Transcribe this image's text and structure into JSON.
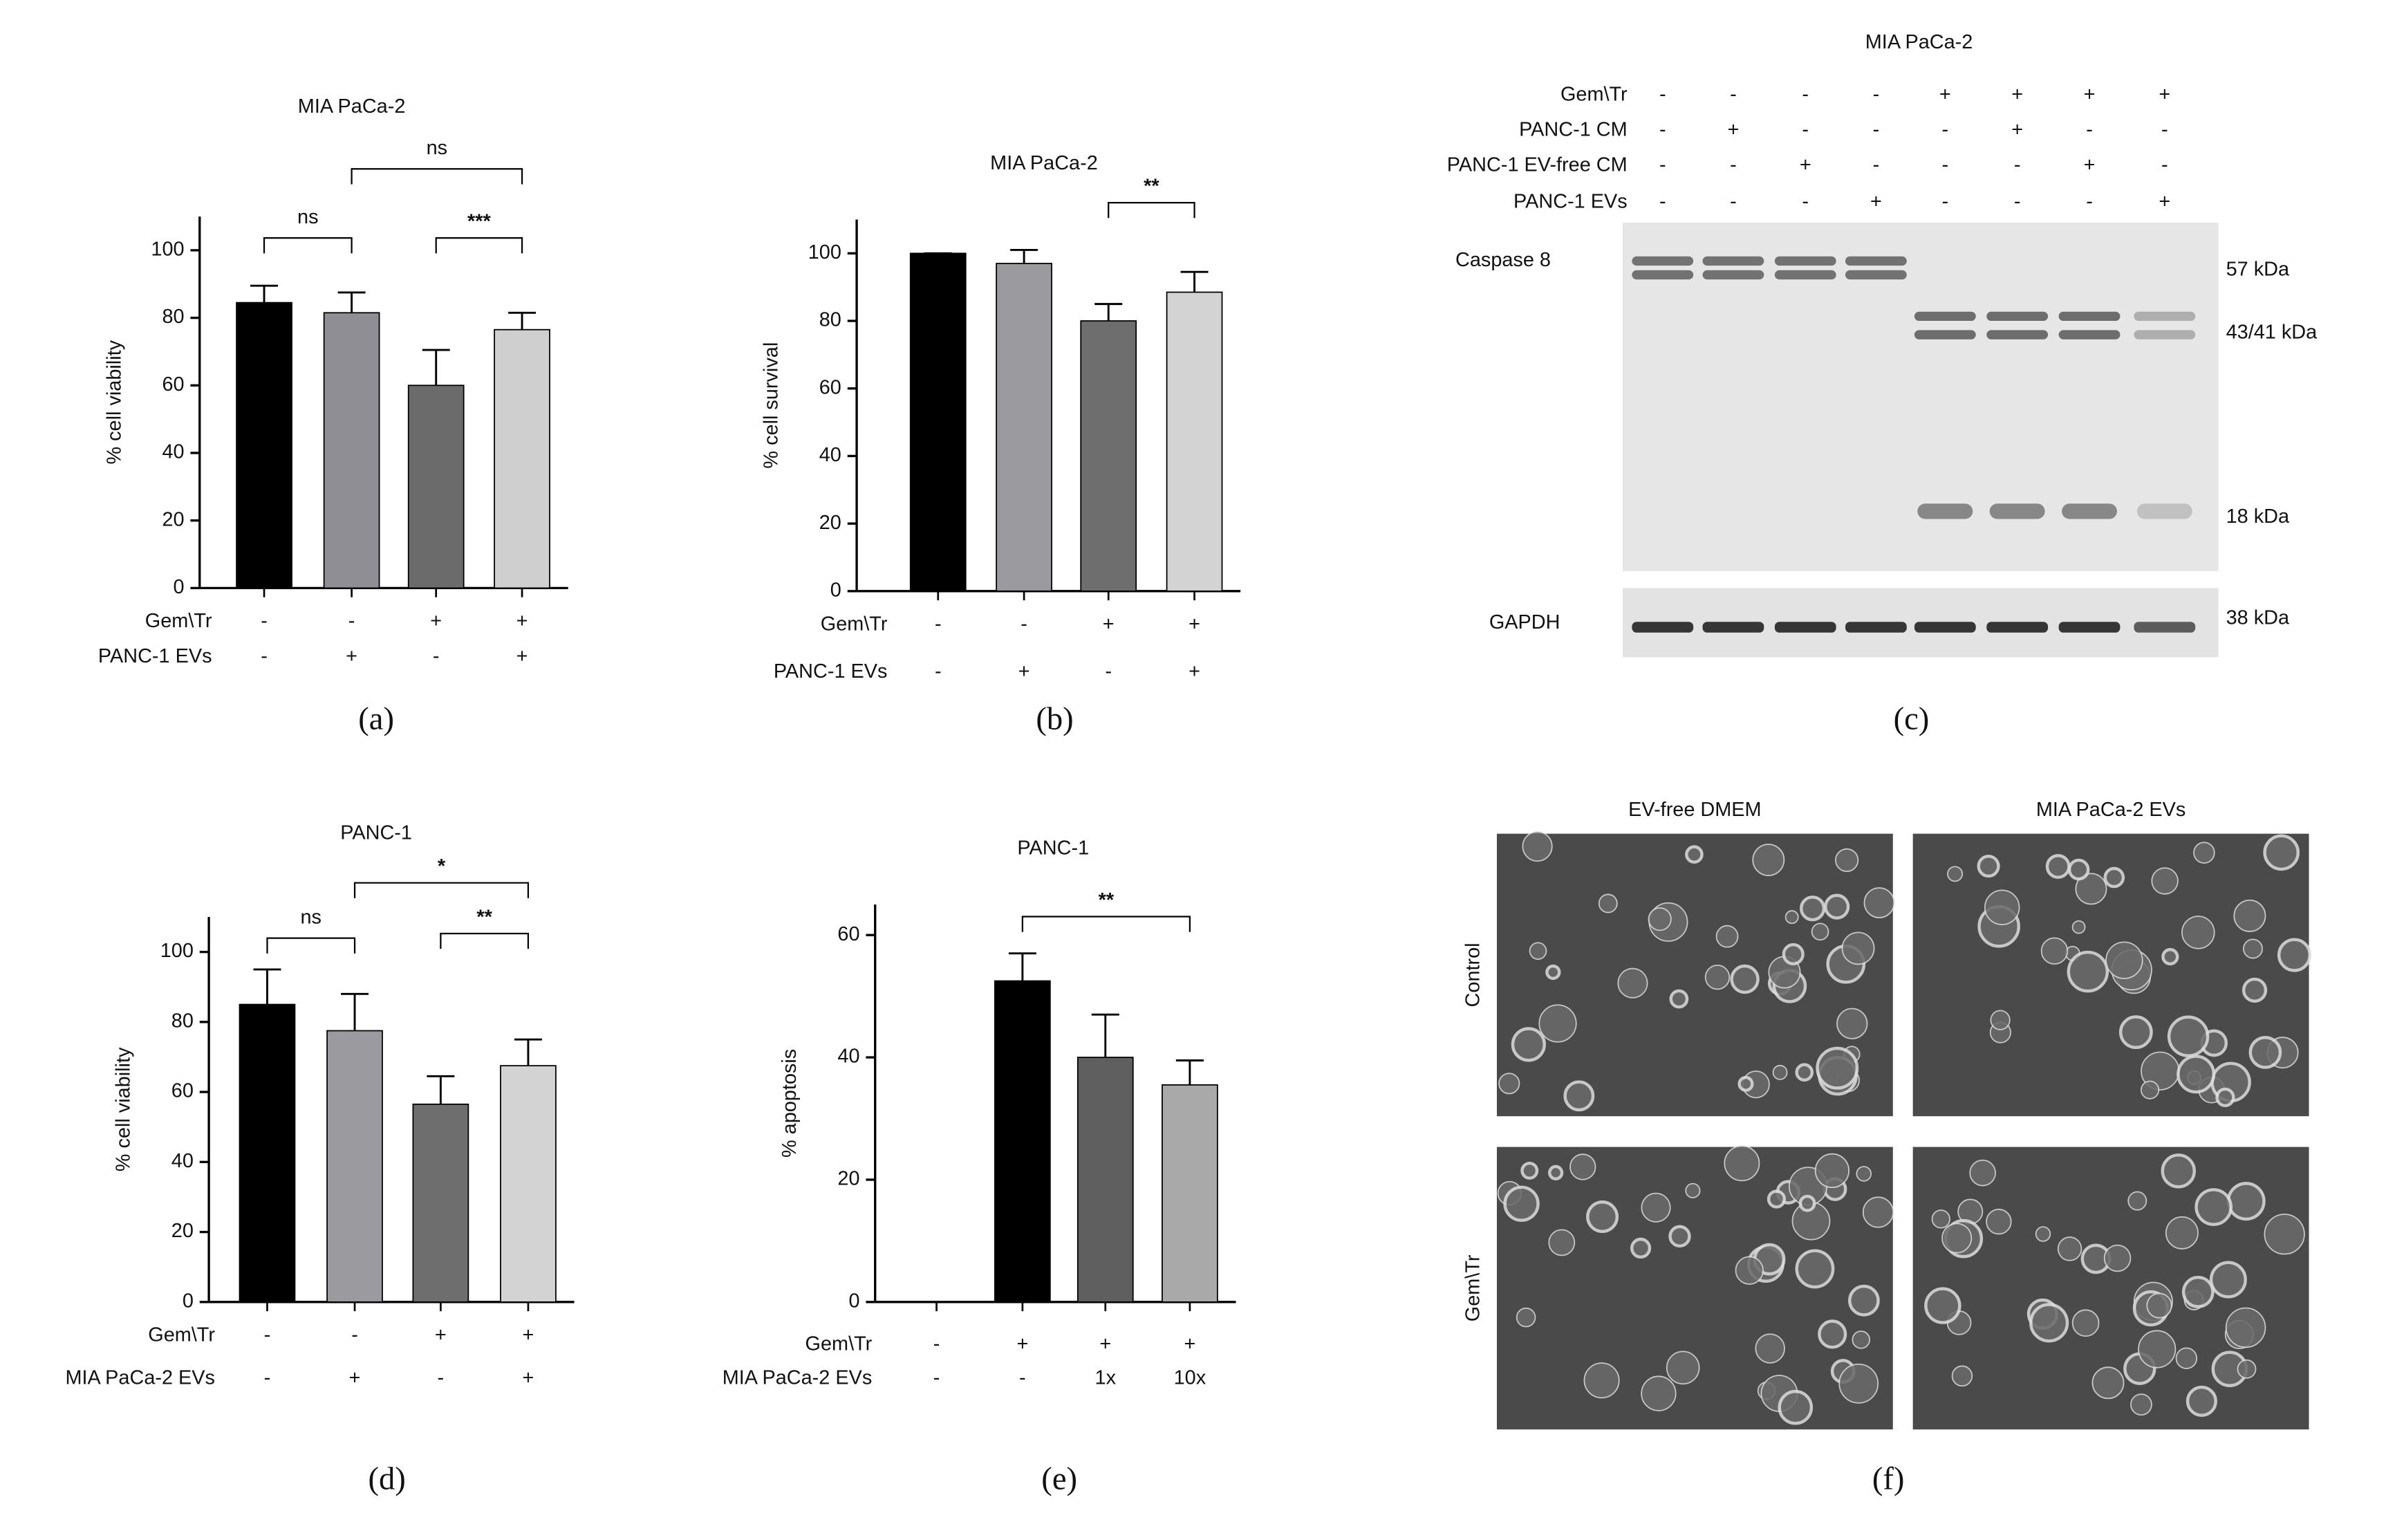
{
  "chart_data": [
    {
      "type": "bar",
      "panel": "(a)",
      "title": "MIA PaCa-2",
      "y_label": "% cell viability",
      "values": [
        84.5,
        81.5,
        60,
        76.5
      ],
      "errors": [
        5,
        6,
        10.5,
        5
      ],
      "colors": [
        "#000000",
        "#8e8e94",
        "#6b6b6b",
        "#cfcfcf"
      ],
      "ylim": [
        0,
        110
      ],
      "yticks": [
        0,
        20,
        40,
        60,
        80,
        100
      ],
      "condition_rows": [
        {
          "label": "Gem\\Tr",
          "marks": [
            "-",
            "-",
            "+",
            "+"
          ]
        },
        {
          "label": "PANC-1 EVs",
          "marks": [
            "-",
            "+",
            "-",
            "+"
          ]
        }
      ],
      "annotations": [
        "ns",
        "ns",
        "***"
      ]
    },
    {
      "type": "bar",
      "panel": "(b)",
      "title": "MIA PaCa-2",
      "y_label": "% cell survival",
      "values": [
        100,
        97,
        80,
        88.5
      ],
      "errors": [
        0,
        4,
        5,
        6
      ],
      "colors": [
        "#000000",
        "#9a9a9f",
        "#6e6e6e",
        "#d3d3d3"
      ],
      "ylim": [
        0,
        110
      ],
      "yticks": [
        0,
        20,
        40,
        60,
        80,
        100
      ],
      "condition_rows": [
        {
          "label": "Gem\\Tr",
          "marks": [
            "-",
            "-",
            "+",
            "+"
          ]
        },
        {
          "label": "PANC-1 EVs",
          "marks": [
            "-",
            "+",
            "-",
            "+"
          ]
        }
      ],
      "annotations": [
        "**"
      ]
    },
    {
      "type": "bar",
      "panel": "(d)",
      "title": "PANC-1",
      "y_label": "% cell viability",
      "values": [
        85,
        77.5,
        56.5,
        67.5
      ],
      "errors": [
        10,
        10.5,
        8,
        7.5
      ],
      "colors": [
        "#000000",
        "#9a9a9f",
        "#6e6e6e",
        "#d3d3d3"
      ],
      "ylim": [
        0,
        110
      ],
      "yticks": [
        0,
        20,
        40,
        60,
        80,
        100
      ],
      "condition_rows": [
        {
          "label": "Gem\\Tr",
          "marks": [
            "-",
            "-",
            "+",
            "+"
          ]
        },
        {
          "label": "MIA PaCa-2 EVs",
          "marks": [
            "-",
            "+",
            "-",
            "+"
          ]
        }
      ],
      "annotations": [
        "ns",
        "*",
        "**"
      ]
    },
    {
      "type": "bar",
      "panel": "(e)",
      "title": "PANC-1",
      "y_label": "% apoptosis",
      "values": [
        null,
        52.5,
        40,
        35.5
      ],
      "errors": [
        null,
        4.5,
        7,
        4
      ],
      "colors": [
        null,
        "#000000",
        "#5f5f5f",
        "#a9a9a9"
      ],
      "ylim": [
        0,
        65
      ],
      "yticks": [
        0,
        20,
        40,
        60
      ],
      "condition_rows": [
        {
          "label": "Gem\\Tr",
          "marks": [
            "-",
            "+",
            "+",
            "+"
          ]
        },
        {
          "label": "MIA PaCa-2 EVs",
          "marks": [
            "-",
            "-",
            "1x",
            "10x"
          ]
        }
      ],
      "annotations": [
        "**"
      ]
    }
  ],
  "western_blot": {
    "panel": "(c)",
    "title": "MIA PaCa-2",
    "condition_rows": [
      {
        "label": "Gem\\Tr",
        "marks": [
          "-",
          "-",
          "-",
          "-",
          "+",
          "+",
          "+",
          "+"
        ]
      },
      {
        "label": "PANC-1 CM",
        "marks": [
          "-",
          "+",
          "-",
          "-",
          "-",
          "+",
          "-",
          "-"
        ]
      },
      {
        "label": "PANC-1 EV-free CM",
        "marks": [
          "-",
          "-",
          "+",
          "-",
          "-",
          "-",
          "+",
          "-"
        ]
      },
      {
        "label": "PANC-1 EVs",
        "marks": [
          "-",
          "-",
          "-",
          "+",
          "-",
          "-",
          "-",
          "+"
        ]
      }
    ],
    "blots": [
      {
        "label": "Caspase 8",
        "markers": [
          "57 kDa",
          "43/41 kDa",
          "18 kDa"
        ]
      },
      {
        "label": "GAPDH",
        "markers": [
          "38 kDa"
        ]
      }
    ]
  },
  "micrographs": {
    "panel": "(f)",
    "columns": [
      "EV-free DMEM",
      "MIA PaCa-2 EVs"
    ],
    "rows": [
      "Control",
      "Gem\\Tr"
    ]
  }
}
